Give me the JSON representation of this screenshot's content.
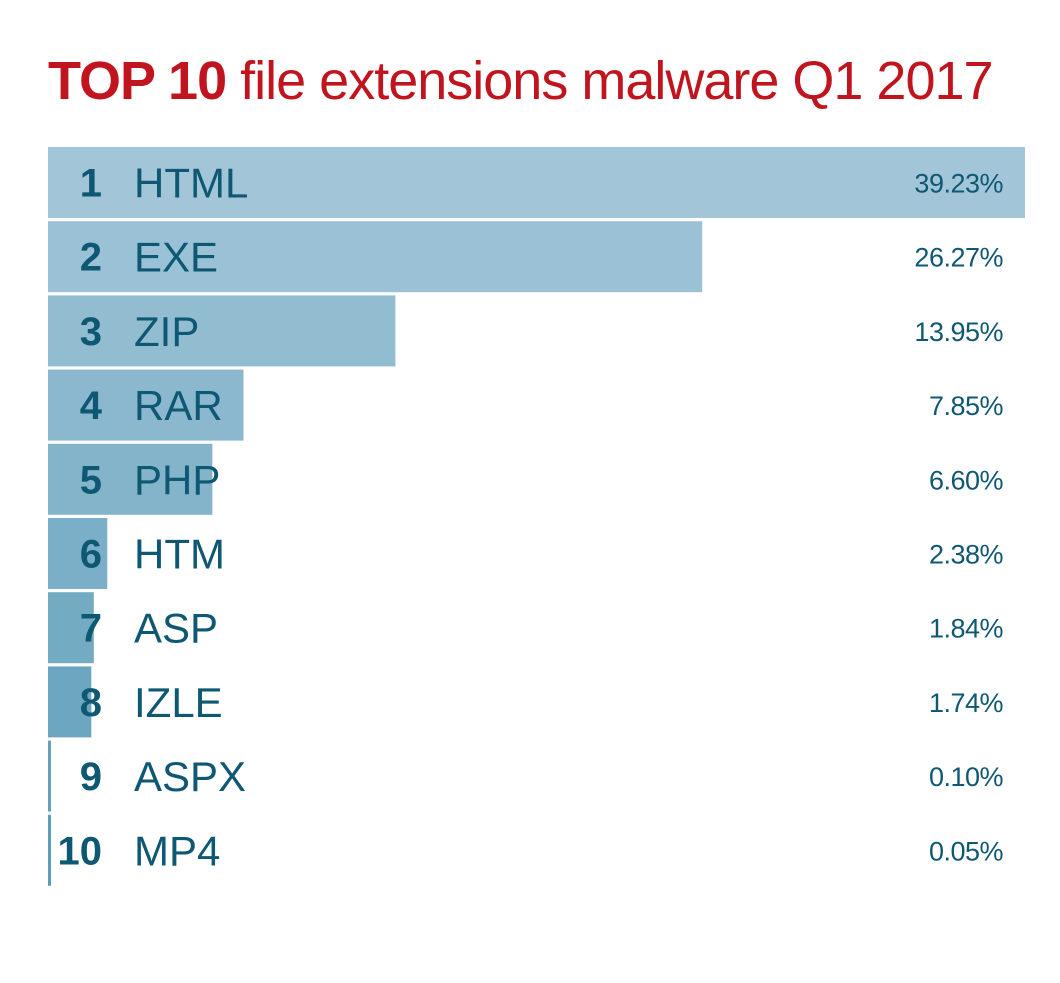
{
  "title": {
    "bold": "TOP 10",
    "rest": "file extensions malware Q1 2017"
  },
  "colors": {
    "title": "#c0141e",
    "text": "#0f5873",
    "bar_top": "#a2c6d8",
    "bar_bottom": "#5c9db9"
  },
  "chart_data": {
    "type": "bar",
    "orientation": "horizontal",
    "title": "TOP 10 file extensions malware Q1 2017",
    "xlabel": "",
    "ylabel": "",
    "xlim": [
      0,
      39.23
    ],
    "grid": false,
    "legend": "none",
    "series": [
      {
        "name": "Share of malware",
        "ranks": [
          "1",
          "2",
          "3",
          "4",
          "5",
          "6",
          "7",
          "8",
          "9",
          "10"
        ],
        "categories": [
          "HTML",
          "EXE",
          "ZIP",
          "RAR",
          "PHP",
          "HTM",
          "ASP",
          "IZLE",
          "ASPX",
          "MP4"
        ],
        "values": [
          39.23,
          26.27,
          13.95,
          7.85,
          6.6,
          2.38,
          1.84,
          1.74,
          0.1,
          0.05
        ],
        "value_labels": [
          "39.23%",
          "26.27%",
          "13.95%",
          "7.85%",
          "6.60%",
          "2.38%",
          "1.84%",
          "1.74%",
          "0.10%",
          "0.05%"
        ]
      }
    ]
  }
}
